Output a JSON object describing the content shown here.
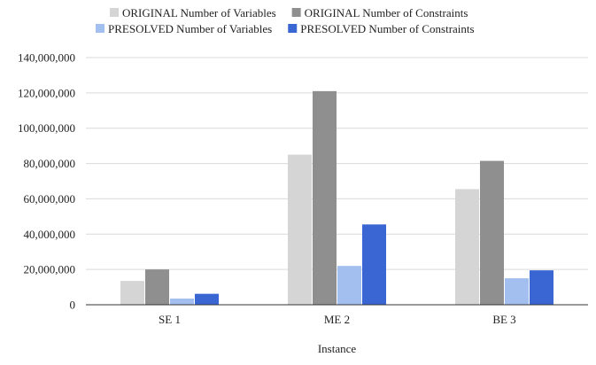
{
  "chart_data": {
    "type": "bar",
    "title": "",
    "xlabel": "Instance",
    "ylabel": "",
    "categories": [
      "SE 1",
      "ME 2",
      "BE 3"
    ],
    "series": [
      {
        "name": "ORIGINAL Number of Variables",
        "color": "#d5d5d5",
        "values": [
          13500000,
          85000000,
          65500000
        ]
      },
      {
        "name": "ORIGINAL Number of Constraints",
        "color": "#8f8f8f",
        "values": [
          20000000,
          121000000,
          81500000
        ]
      },
      {
        "name": "PRESOLVED Number of Variables",
        "color": "#a3bff0",
        "values": [
          3500000,
          22000000,
          15000000
        ]
      },
      {
        "name": "PRESOLVED Number of Constraints",
        "color": "#3a66d4",
        "values": [
          6200000,
          45500000,
          19500000
        ]
      }
    ],
    "ylim": [
      0,
      140000000
    ],
    "yticks": [
      "0",
      "20,000,000",
      "40,000,000",
      "60,000,000",
      "80,000,000",
      "100,000,000",
      "120,000,000",
      "140,000,000"
    ],
    "grid": true,
    "legend_position": "top"
  }
}
